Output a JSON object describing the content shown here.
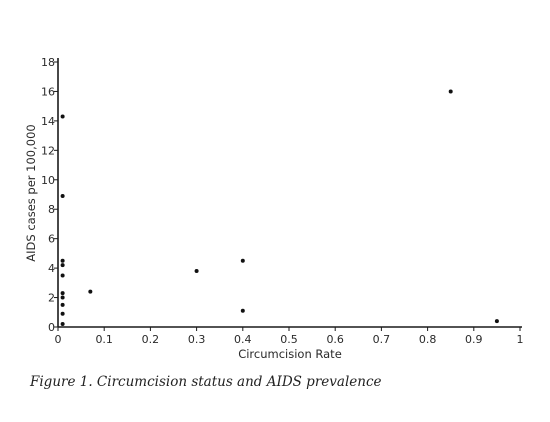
{
  "caption": "Figure 1. Circumcision status and AIDS prevalence",
  "chart_data": {
    "type": "scatter",
    "title": "",
    "xlabel": "Circumcision Rate",
    "ylabel": "AIDS cases per 100,000",
    "xlim": [
      0,
      1
    ],
    "ylim": [
      0,
      18
    ],
    "x_ticks": [
      "0",
      "0.1",
      "0.2",
      "0.3",
      "0.4",
      "0.5",
      "0.6",
      "0.7",
      "0.8",
      "0.9",
      "1"
    ],
    "y_ticks": [
      "0",
      "2",
      "4",
      "6",
      "8",
      "10",
      "12",
      "14",
      "16",
      "18"
    ],
    "grid": false,
    "points": [
      {
        "x": 0.01,
        "y": 14.3
      },
      {
        "x": 0.01,
        "y": 8.9
      },
      {
        "x": 0.01,
        "y": 4.5
      },
      {
        "x": 0.01,
        "y": 4.2
      },
      {
        "x": 0.01,
        "y": 3.5
      },
      {
        "x": 0.01,
        "y": 2.3
      },
      {
        "x": 0.01,
        "y": 2.0
      },
      {
        "x": 0.01,
        "y": 1.5
      },
      {
        "x": 0.01,
        "y": 0.9
      },
      {
        "x": 0.01,
        "y": 0.2
      },
      {
        "x": 0.07,
        "y": 2.4
      },
      {
        "x": 0.3,
        "y": 3.8
      },
      {
        "x": 0.4,
        "y": 4.5
      },
      {
        "x": 0.4,
        "y": 1.1
      },
      {
        "x": 0.85,
        "y": 16.0
      },
      {
        "x": 0.95,
        "y": 0.4
      }
    ]
  }
}
